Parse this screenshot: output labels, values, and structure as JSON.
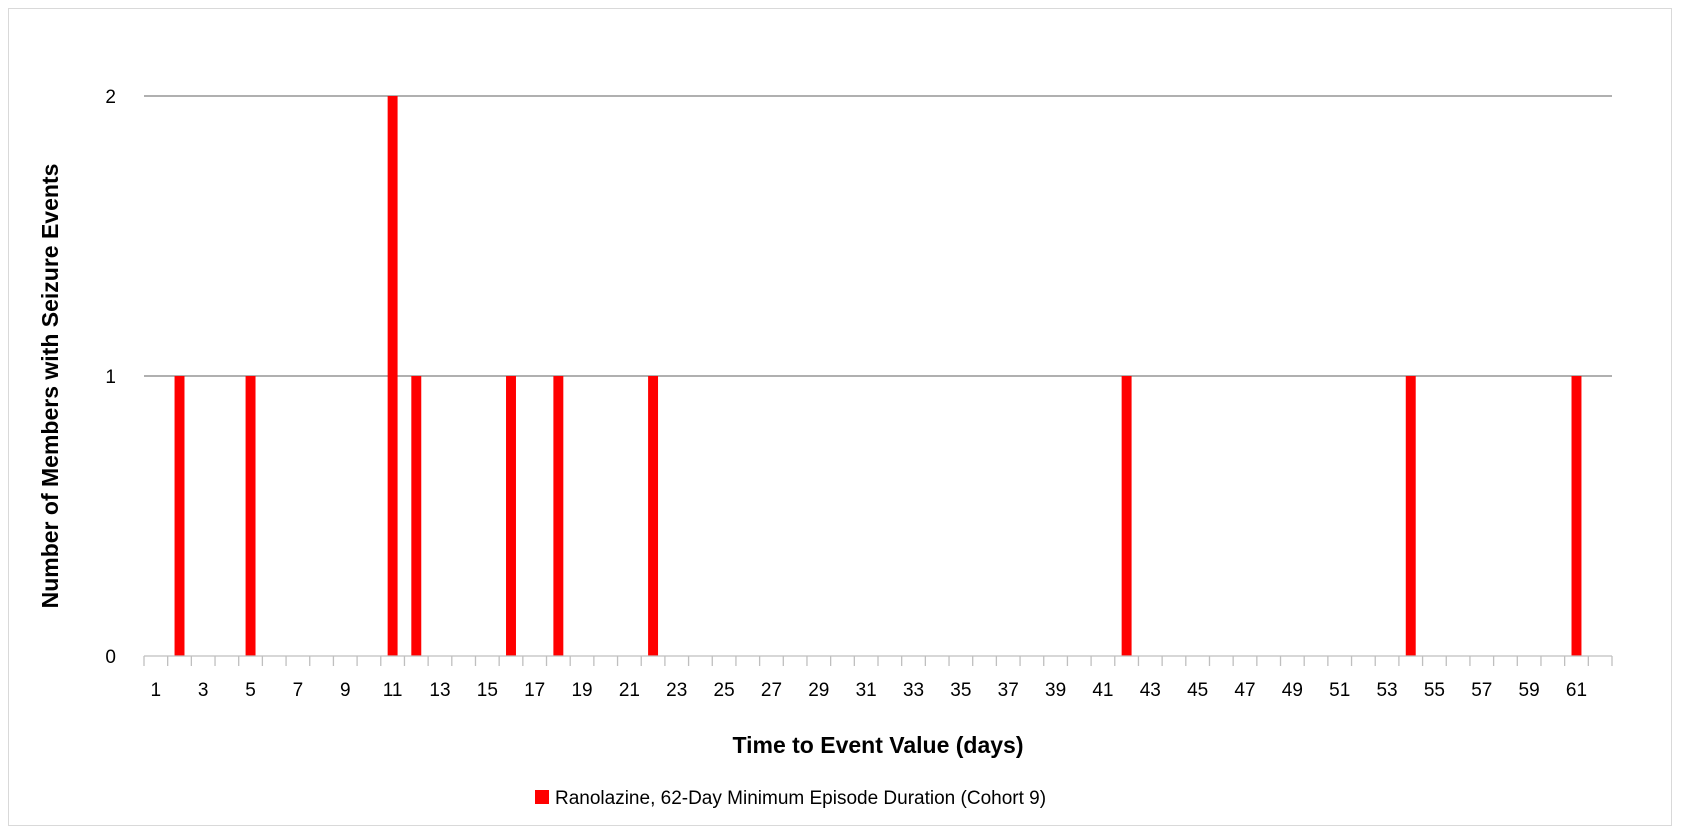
{
  "chart_data": {
    "type": "bar",
    "xlabel": "Time to Event Value (days)",
    "ylabel": "Number of Members with Seizure Events",
    "x_domain": [
      1,
      62
    ],
    "x_tick_labels": [
      1,
      3,
      5,
      7,
      9,
      11,
      13,
      15,
      17,
      19,
      21,
      23,
      25,
      27,
      29,
      31,
      33,
      35,
      37,
      39,
      41,
      43,
      45,
      47,
      49,
      51,
      53,
      55,
      57,
      59,
      61
    ],
    "ylim": [
      0,
      2
    ],
    "y_ticks": [
      0,
      1,
      2
    ],
    "grid": true,
    "legend_position": "bottom",
    "series": [
      {
        "name": "Ranolazine, 62-Day Minimum Episode Duration (Cohort 9)",
        "color": "#ff0000",
        "points": [
          {
            "x": 2,
            "y": 1
          },
          {
            "x": 5,
            "y": 1
          },
          {
            "x": 11,
            "y": 2
          },
          {
            "x": 12,
            "y": 1
          },
          {
            "x": 16,
            "y": 1
          },
          {
            "x": 18,
            "y": 1
          },
          {
            "x": 22,
            "y": 1
          },
          {
            "x": 42,
            "y": 1
          },
          {
            "x": 54,
            "y": 1
          },
          {
            "x": 61,
            "y": 1
          }
        ]
      }
    ]
  }
}
